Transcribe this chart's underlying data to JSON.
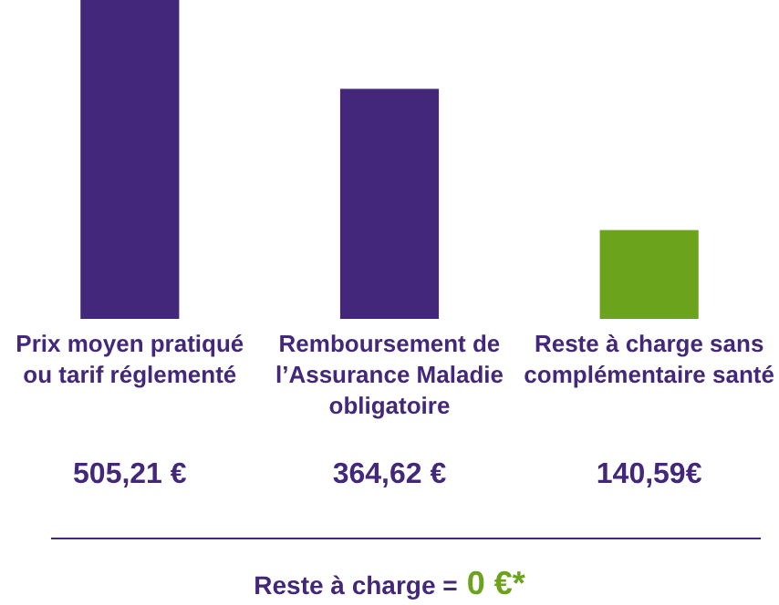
{
  "chart_data": {
    "type": "bar",
    "categories": [
      "Prix moyen pratiqué ou tarif réglementé",
      "Remboursement de l’Assurance Maladie obligatoire",
      "Reste à charge sans complémentaire santé"
    ],
    "values": [
      505.21,
      364.62,
      140.59
    ],
    "colors": [
      "#43277a",
      "#43277a",
      "#6ba31c"
    ],
    "value_labels": [
      "505,21 €",
      "364,62 €",
      "140,59€"
    ],
    "ylim": [
      0,
      505.21
    ],
    "annotations": [
      "Reste à charge =",
      "0 €*"
    ]
  }
}
